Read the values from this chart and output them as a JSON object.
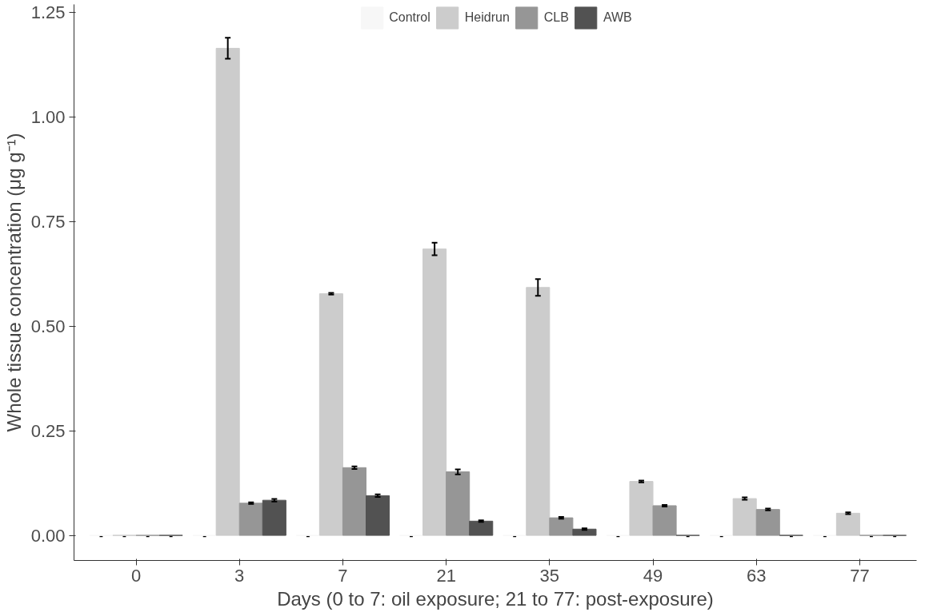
{
  "chart_data": {
    "type": "bar",
    "xlabel": "Days (0 to 7: oil exposure; 21 to 77: post-exposure)",
    "ylabel": "Whole tissue concentration (μg g⁻¹)",
    "categories": [
      "0",
      "3",
      "7",
      "21",
      "35",
      "49",
      "63",
      "77"
    ],
    "series": [
      {
        "name": "Control",
        "color": "#f7f7f7",
        "values": [
          0,
          0,
          0,
          0,
          0,
          0,
          0,
          0
        ],
        "value_labels": [
          "-",
          "-",
          "-",
          "-",
          "-",
          "-",
          "-",
          "-"
        ]
      },
      {
        "name": "Heidrun",
        "color": "#cccccc",
        "values": [
          0,
          1.165,
          0.578,
          0.685,
          0.593,
          0.129,
          0.088,
          0.053
        ],
        "errors": [
          null,
          0.025,
          0.002,
          0.015,
          0.02,
          0.002,
          0.003,
          0.002
        ],
        "value_labels": [
          "-",
          null,
          null,
          null,
          null,
          null,
          null,
          null
        ]
      },
      {
        "name": "CLB",
        "color": "#969696",
        "values": [
          0,
          0.077,
          0.162,
          0.152,
          0.042,
          0.071,
          0.062,
          0
        ],
        "errors": [
          null,
          0.002,
          0.003,
          0.006,
          0.002,
          0.002,
          0.002,
          null
        ],
        "value_labels": [
          "-",
          null,
          null,
          null,
          null,
          null,
          null,
          "-"
        ]
      },
      {
        "name": "AWB",
        "color": "#525252",
        "values": [
          0,
          0.084,
          0.095,
          0.034,
          0.015,
          0,
          0,
          0
        ],
        "errors": [
          null,
          0.003,
          0.003,
          0.002,
          0.002,
          null,
          null,
          null
        ],
        "value_labels": [
          "-",
          null,
          null,
          null,
          null,
          "-",
          "-",
          "-"
        ]
      }
    ],
    "ylim": [
      -0.06,
      1.27
    ],
    "yticks": [
      {
        "value": 0,
        "label": "0.00"
      },
      {
        "value": 0.25,
        "label": "0.25"
      },
      {
        "value": 0.5,
        "label": "0.50"
      },
      {
        "value": 0.75,
        "label": "0.75"
      },
      {
        "value": 1,
        "label": "1.00"
      },
      {
        "value": 1.25,
        "label": "1.25"
      }
    ],
    "grid": false,
    "legend": "top"
  }
}
